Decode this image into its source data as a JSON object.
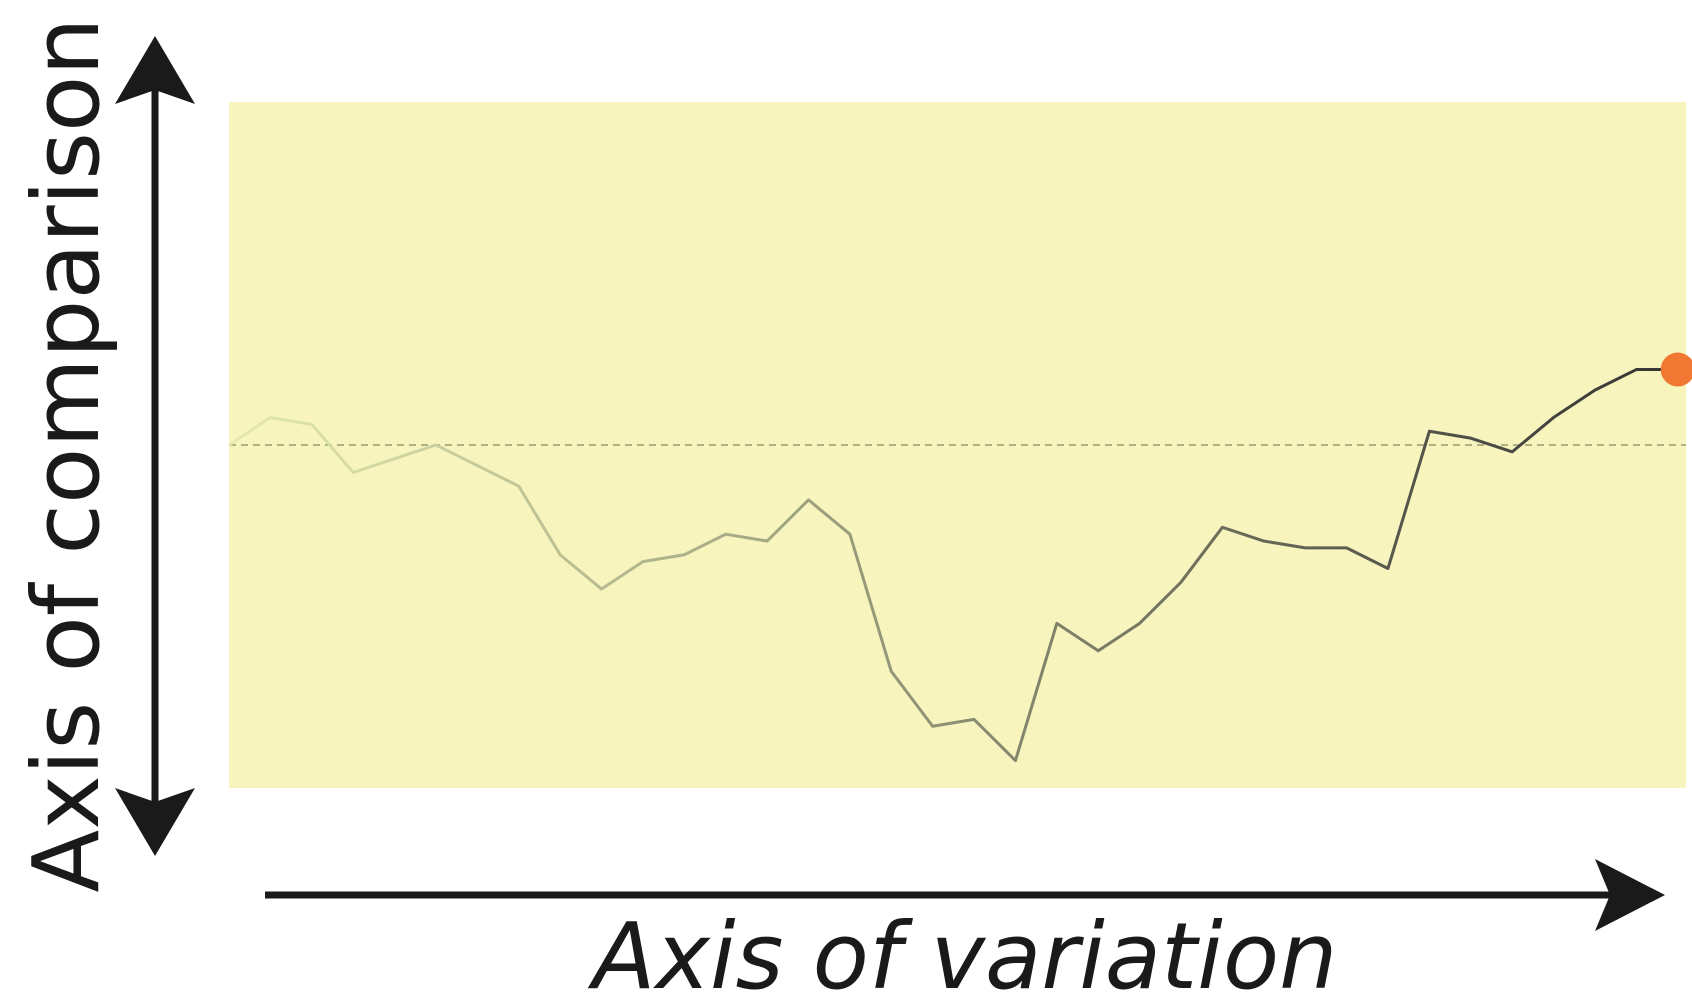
{
  "chart_data": {
    "type": "line",
    "ylabel": "Axis of comparison",
    "xlabel": "Axis of variation",
    "x": [
      0,
      1,
      2,
      3,
      4,
      5,
      6,
      7,
      8,
      9,
      10,
      11,
      12,
      13,
      14,
      15,
      16,
      17,
      18,
      19,
      20,
      21,
      22,
      23,
      24,
      25,
      26,
      27,
      28,
      29,
      30,
      31,
      32,
      33,
      34,
      35
    ],
    "series": [
      {
        "color": "#333333",
        "start_color": "#e4eab0",
        "highlight_color": "#f07832",
        "values": [
          50,
          54,
          53,
          46,
          48,
          50,
          47,
          44,
          34,
          29,
          33,
          34,
          37,
          36,
          42,
          37,
          17,
          9,
          10,
          4,
          24,
          20,
          24,
          30,
          38,
          36,
          35,
          35,
          32,
          52,
          51,
          49,
          54,
          58,
          61,
          61
        ]
      }
    ],
    "reference": 50,
    "xlim": [
      0,
      35.2
    ],
    "ylim": [
      0,
      100
    ],
    "background": "#f7f4bd"
  }
}
